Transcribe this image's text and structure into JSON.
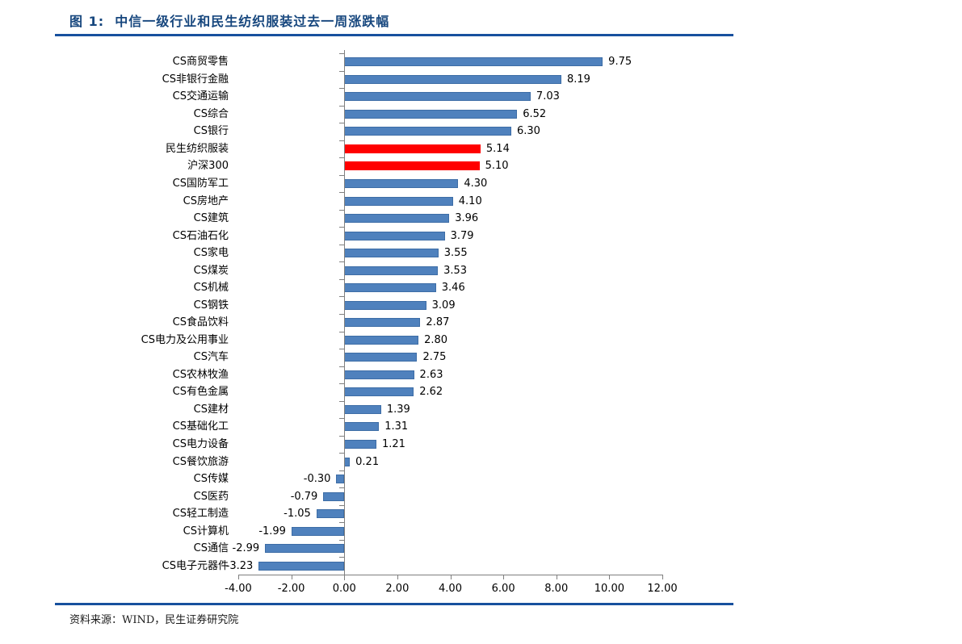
{
  "title": "图 1:  中信一级行业和民生纺织服装过去一周涨跌幅",
  "footer": {
    "source": "资料来源：WIND，民生证券研究院"
  },
  "colors": {
    "accent_blue": "#17509E",
    "title_text": "#17477E",
    "bar_blue": "#4F81BD",
    "bar_blue_border": "#3D6DA6",
    "bar_red": "#FF0000",
    "axis_gray": "#7F7F7F"
  },
  "chart_data": {
    "type": "bar",
    "orientation": "horizontal",
    "title": "中信一级行业和民生纺织服装过去一周涨跌幅",
    "xlabel": "",
    "ylabel": "",
    "xlim": [
      -4,
      12
    ],
    "x_ticks": [
      -4,
      -2,
      0,
      2,
      4,
      6,
      8,
      10,
      12
    ],
    "x_tick_labels": [
      "-4.00",
      "-2.00",
      "0.00",
      "2.00",
      "4.00",
      "6.00",
      "8.00",
      "10.00",
      "12.00"
    ],
    "grid": false,
    "legend": null,
    "categories": [
      "CS商贸零售",
      "CS非银行金融",
      "CS交通运输",
      "CS综合",
      "CS银行",
      "民生纺织服装",
      "沪深300",
      "CS国防军工",
      "CS房地产",
      "CS建筑",
      "CS石油石化",
      "CS家电",
      "CS煤炭",
      "CS机械",
      "CS钢铁",
      "CS食品饮料",
      "CS电力及公用事业",
      "CS汽车",
      "CS农林牧渔",
      "CS有色金属",
      "CS建材",
      "CS基础化工",
      "CS电力设备",
      "CS餐饮旅游",
      "CS传媒",
      "CS医药",
      "CS轻工制造",
      "CS计算机",
      "CS通信",
      "CS电子元器件"
    ],
    "values": [
      9.75,
      8.19,
      7.03,
      6.52,
      6.3,
      5.14,
      5.1,
      4.3,
      4.1,
      3.96,
      3.79,
      3.55,
      3.53,
      3.46,
      3.09,
      2.87,
      2.8,
      2.75,
      2.63,
      2.62,
      1.39,
      1.31,
      1.21,
      0.21,
      -0.3,
      -0.79,
      -1.05,
      -1.99,
      -2.99,
      -3.23
    ],
    "value_labels": [
      "9.75",
      "8.19",
      "7.03",
      "6.52",
      "6.30",
      "5.14",
      "5.10",
      "4.30",
      "4.10",
      "3.96",
      "3.79",
      "3.55",
      "3.53",
      "3.46",
      "3.09",
      "2.87",
      "2.80",
      "2.75",
      "2.63",
      "2.62",
      "1.39",
      "1.31",
      "1.21",
      "0.21",
      "-0.30",
      "-0.79",
      "-1.05",
      "-1.99",
      "-2.99",
      "-3.23"
    ],
    "highlight_indices": [
      5,
      6
    ],
    "highlight_color": "#FF0000",
    "series_color": "#4F81BD"
  }
}
